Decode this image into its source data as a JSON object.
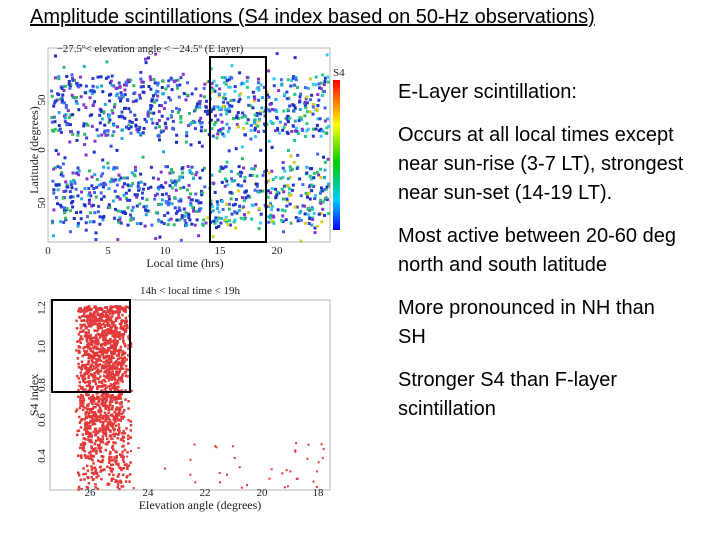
{
  "title": "Amplitude scintillations (S4 index based on 50-Hz observations)",
  "figure_top": {
    "caption": "−27.5º< elevation angle < −24.5º   (E layer)",
    "x_label": "Local time (hrs)",
    "y_label": "Latitude (degrees)",
    "x_ticks": [
      "0",
      "5",
      "10",
      "15",
      "20"
    ],
    "y_ticks": [
      "50",
      "0",
      "50"
    ],
    "colorbar_label": "S4"
  },
  "figure_bottom": {
    "caption": "14h < local time < 19h",
    "x_label": "Elevation angle (degrees)",
    "y_label": "S4 index",
    "x_ticks": [
      "26",
      "24",
      "22",
      "20",
      "18"
    ],
    "y_ticks": [
      "1.2",
      "1.0",
      "0.8",
      "0.6",
      "0.4"
    ]
  },
  "bullets": [
    "E-Layer scintillation:",
    "Occurs at all local times except near sun-rise (3-7 LT), strongest near sun-set (14-19 LT).",
    "Most active between 20-60 deg north and south latitude",
    "More pronounced in NH than SH",
    "Stronger S4 than F-layer scintillation"
  ]
}
